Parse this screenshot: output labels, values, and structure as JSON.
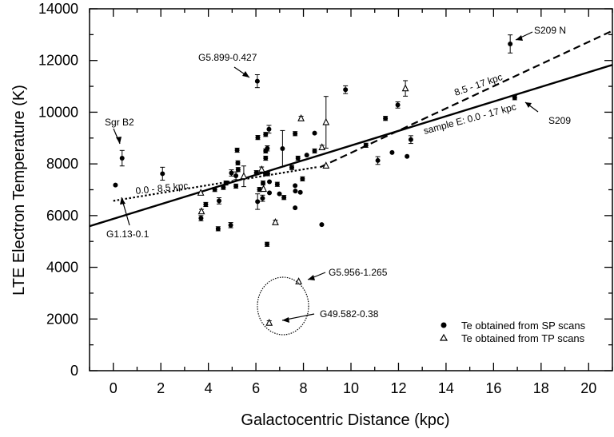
{
  "chart_data": {
    "type": "scatter",
    "xlabel": "Galactocentric Distance (kpc)",
    "ylabel": "LTE Electron Temperature (K)",
    "xlim": [
      -1,
      21
    ],
    "ylim": [
      0,
      14000
    ],
    "xticks": [
      0,
      2,
      4,
      6,
      8,
      10,
      12,
      14,
      16,
      18,
      20
    ],
    "yticks": [
      0,
      2000,
      4000,
      6000,
      8000,
      10000,
      12000,
      14000
    ],
    "grid": false,
    "legend_position": "bottom-right",
    "legend": [
      {
        "marker": "filled-circle",
        "label": "Te obtained from SP scans"
      },
      {
        "marker": "open-triangle",
        "label": "Te obtained from TP scans"
      }
    ],
    "series": [
      {
        "marker": "filled-circle",
        "points": [
          [
            0.37,
            8220,
            300
          ],
          [
            0.09,
            7180,
            0
          ],
          [
            2.07,
            7620,
            250
          ],
          [
            6.06,
            11200,
            250
          ],
          [
            9.77,
            10870,
            150
          ],
          [
            3.69,
            5900,
            100
          ],
          [
            3.89,
            6430,
            80
          ],
          [
            4.41,
            5490,
            80
          ],
          [
            4.45,
            6570,
            120
          ],
          [
            4.27,
            7010,
            80
          ],
          [
            4.63,
            7090,
            80
          ],
          [
            4.74,
            7260,
            80
          ],
          [
            4.94,
            5630,
            100
          ],
          [
            5.16,
            7140,
            80
          ],
          [
            5.16,
            7540,
            150
          ],
          [
            4.97,
            7650,
            120
          ],
          [
            5.25,
            7780,
            80
          ],
          [
            5.24,
            8040,
            80
          ],
          [
            5.21,
            8530,
            80
          ],
          [
            6.02,
            7660,
            80
          ],
          [
            6.07,
            6540,
            300
          ],
          [
            6.08,
            9020,
            80
          ],
          [
            6.28,
            6670,
            120
          ],
          [
            6.3,
            7260,
            80
          ],
          [
            6.15,
            7010,
            80
          ],
          [
            6.4,
            7620,
            80
          ],
          [
            6.5,
            7620,
            80
          ],
          [
            6.41,
            8220,
            80
          ],
          [
            6.41,
            8500,
            80
          ],
          [
            6.48,
            8600,
            100
          ],
          [
            6.41,
            9140,
            80
          ],
          [
            6.55,
            9340,
            150
          ],
          [
            6.47,
            4890,
            80
          ],
          [
            6.57,
            7310,
            0
          ],
          [
            6.57,
            6880,
            0
          ],
          [
            6.9,
            7210,
            80
          ],
          [
            6.99,
            6840,
            0
          ],
          [
            7.18,
            6700,
            80
          ],
          [
            7.12,
            8590,
            700
          ],
          [
            7.65,
            9170,
            80
          ],
          [
            7.51,
            7860,
            80
          ],
          [
            7.77,
            8220,
            80
          ],
          [
            8.14,
            8340,
            0
          ],
          [
            7.65,
            7160,
            0
          ],
          [
            7.66,
            6950,
            0
          ],
          [
            7.87,
            6900,
            0
          ],
          [
            7.96,
            7420,
            80
          ],
          [
            7.65,
            6300,
            0
          ],
          [
            8.47,
            9190,
            0
          ],
          [
            8.47,
            8500,
            80
          ],
          [
            8.77,
            5650,
            0
          ],
          [
            11.97,
            10280,
            120
          ],
          [
            11.45,
            9760,
            80
          ],
          [
            10.63,
            8720,
            80
          ],
          [
            11.13,
            8130,
            150
          ],
          [
            11.73,
            8440,
            0
          ],
          [
            12.36,
            8290,
            0
          ],
          [
            12.52,
            8940,
            150
          ],
          [
            16.7,
            12640,
            350
          ],
          [
            16.89,
            10560,
            80
          ]
        ]
      },
      {
        "marker": "open-triangle",
        "points": [
          [
            3.68,
            6880,
            0
          ],
          [
            3.71,
            6160,
            80
          ],
          [
            5.49,
            7520,
            400
          ],
          [
            6.24,
            7780,
            100
          ],
          [
            6.32,
            7030,
            0
          ],
          [
            6.82,
            5740,
            80
          ],
          [
            7.9,
            9760,
            80
          ],
          [
            8.78,
            8640,
            80
          ],
          [
            8.95,
            9610,
            1000
          ],
          [
            8.95,
            7930,
            0
          ],
          [
            12.29,
            10920,
            300
          ],
          [
            7.8,
            3450,
            0
          ],
          [
            6.56,
            1850,
            80
          ]
        ]
      }
    ],
    "fits": [
      {
        "label": "sample E: 0.0 - 17 kpc",
        "style": "solid",
        "from": [
          -1,
          5590
        ],
        "to": [
          21,
          11830
        ]
      },
      {
        "label": "8.5 - 17 kpc",
        "style": "dashed",
        "from": [
          8.7,
          7870
        ],
        "to": [
          21,
          13150
        ]
      },
      {
        "label": "0.0 - 8.5 kpc",
        "style": "dotted",
        "from": [
          0,
          6570
        ],
        "to": [
          8.6,
          7880
        ]
      }
    ],
    "annotations": {
      "sgr_b2": "Sgr B2",
      "g113": "G1.13-0.1",
      "g5899": "G5.899-0.427",
      "s209n": "S209 N",
      "s209": "S209",
      "g5956": "G5.956-1.265",
      "g49582": "G49.582-0.38"
    }
  }
}
